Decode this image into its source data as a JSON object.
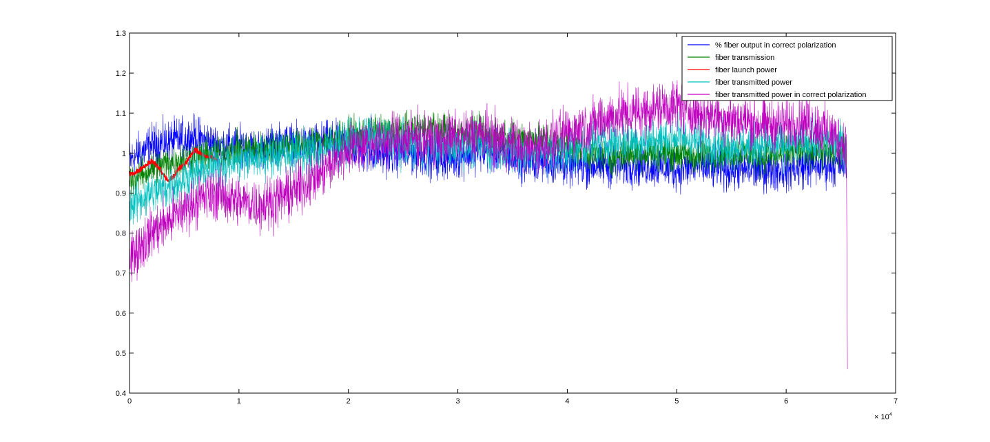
{
  "chart_data": {
    "type": "line",
    "title": "",
    "xlabel": "",
    "ylabel": "",
    "x_multiplier_label": "× 10",
    "x_multiplier_exp": "4",
    "xlim": [
      0,
      70000
    ],
    "ylim": [
      0.4,
      1.3
    ],
    "x_ticks": [
      0,
      10000,
      20000,
      30000,
      40000,
      50000,
      60000,
      70000
    ],
    "x_tick_labels": [
      "0",
      "1",
      "2",
      "3",
      "4",
      "5",
      "6",
      "7"
    ],
    "y_ticks": [
      0.4,
      0.5,
      0.6,
      0.7,
      0.8,
      0.9,
      1.0,
      1.1,
      1.2,
      1.3
    ],
    "y_tick_labels": [
      "0.4",
      "0.5",
      "0.6",
      "0.7",
      "0.8",
      "0.9",
      "1",
      "1.1",
      "1.2",
      "1.3"
    ],
    "grid": false,
    "legend_position": "top-right",
    "series": [
      {
        "name": "% fiber output in correct polarization",
        "color": "#0000ff",
        "x": [
          0,
          2000,
          4000,
          6000,
          8000,
          10000,
          12000,
          14000,
          16000,
          18000,
          20000,
          22000,
          24000,
          26000,
          28000,
          30000,
          32000,
          34000,
          36000,
          38000,
          40000,
          42000,
          44000,
          46000,
          48000,
          50000,
          52000,
          54000,
          56000,
          58000,
          60000,
          62000,
          64000,
          65500
        ],
        "y": [
          0.98,
          1.02,
          1.03,
          1.04,
          1.02,
          1.02,
          1.01,
          1.03,
          1.02,
          1.03,
          1.02,
          1.0,
          1.0,
          1.0,
          0.99,
          0.99,
          1.01,
          1.0,
          0.98,
          0.98,
          0.97,
          0.97,
          0.97,
          0.97,
          0.97,
          0.96,
          0.97,
          0.96,
          0.96,
          0.96,
          0.96,
          0.97,
          0.97,
          0.98
        ],
        "spread": [
          0.05,
          0.05,
          0.05,
          0.05,
          0.045,
          0.045,
          0.045,
          0.045,
          0.045,
          0.045,
          0.05,
          0.05,
          0.05,
          0.05,
          0.05,
          0.05,
          0.05,
          0.05,
          0.05,
          0.05,
          0.05,
          0.05,
          0.05,
          0.05,
          0.05,
          0.05,
          0.05,
          0.05,
          0.05,
          0.05,
          0.05,
          0.05,
          0.05,
          0.05
        ]
      },
      {
        "name": "fiber transmission",
        "color": "#008000",
        "x": [
          0,
          2000,
          4000,
          6000,
          8000,
          10000,
          12000,
          14000,
          16000,
          18000,
          20000,
          22000,
          24000,
          26000,
          28000,
          30000,
          32000,
          34000,
          36000,
          38000,
          40000,
          42000,
          44000,
          46000,
          48000,
          50000,
          52000,
          54000,
          56000,
          58000,
          60000,
          62000,
          64000,
          65500
        ],
        "y": [
          0.93,
          0.96,
          0.98,
          0.99,
          1.0,
          1.01,
          1.01,
          1.02,
          1.02,
          1.03,
          1.04,
          1.05,
          1.05,
          1.06,
          1.06,
          1.05,
          1.05,
          1.04,
          1.04,
          1.03,
          1.02,
          1.0,
          0.99,
          1.0,
          1.0,
          1.0,
          0.99,
          1.0,
          1.0,
          0.99,
          1.0,
          1.01,
          1.0,
          1.0
        ],
        "spread": [
          0.04,
          0.04,
          0.04,
          0.04,
          0.04,
          0.04,
          0.04,
          0.04,
          0.04,
          0.04,
          0.04,
          0.04,
          0.04,
          0.04,
          0.04,
          0.04,
          0.04,
          0.04,
          0.04,
          0.04,
          0.04,
          0.04,
          0.04,
          0.04,
          0.04,
          0.04,
          0.04,
          0.04,
          0.04,
          0.04,
          0.04,
          0.04,
          0.04,
          0.04
        ]
      },
      {
        "name": "fiber launch power",
        "color": "#ff0000",
        "x": [
          0,
          500,
          1000,
          1500,
          2000,
          2500,
          3000,
          3500,
          4000,
          4500,
          5000,
          5500,
          6000,
          6500,
          7000,
          7500,
          8000
        ],
        "y": [
          0.95,
          0.95,
          0.96,
          0.97,
          0.98,
          0.97,
          0.95,
          0.93,
          0.94,
          0.96,
          0.97,
          0.99,
          1.01,
          1.0,
          0.99,
          0.99,
          0.98
        ],
        "spread": [
          0.005,
          0.005,
          0.005,
          0.005,
          0.005,
          0.005,
          0.005,
          0.005,
          0.005,
          0.005,
          0.005,
          0.005,
          0.005,
          0.005,
          0.005,
          0.005,
          0.005
        ]
      },
      {
        "name": "fiber transmitted power",
        "color": "#00bfbf",
        "x": [
          0,
          2000,
          4000,
          6000,
          8000,
          10000,
          12000,
          14000,
          16000,
          18000,
          20000,
          22000,
          24000,
          26000,
          28000,
          30000,
          32000,
          34000,
          36000,
          38000,
          40000,
          42000,
          44000,
          46000,
          48000,
          50000,
          52000,
          54000,
          56000,
          58000,
          60000,
          62000,
          64000,
          65500
        ],
        "y": [
          0.87,
          0.9,
          0.92,
          0.95,
          0.97,
          0.98,
          0.99,
          1.0,
          1.0,
          1.01,
          1.03,
          1.04,
          1.03,
          1.02,
          1.01,
          1.02,
          1.02,
          1.01,
          1.0,
          1.0,
          1.01,
          1.02,
          1.03,
          1.03,
          1.03,
          1.04,
          1.03,
          1.02,
          1.02,
          1.02,
          1.02,
          1.03,
          1.03,
          1.02
        ],
        "spread": [
          0.05,
          0.05,
          0.05,
          0.05,
          0.05,
          0.05,
          0.05,
          0.05,
          0.05,
          0.05,
          0.05,
          0.05,
          0.05,
          0.05,
          0.05,
          0.05,
          0.05,
          0.05,
          0.05,
          0.05,
          0.05,
          0.05,
          0.05,
          0.05,
          0.05,
          0.05,
          0.05,
          0.05,
          0.05,
          0.05,
          0.05,
          0.05,
          0.05,
          0.05
        ]
      },
      {
        "name": "fiber transmitted power in correct polarization",
        "color": "#bf00bf",
        "x": [
          0,
          2000,
          4000,
          6000,
          8000,
          10000,
          12000,
          14000,
          16000,
          18000,
          20000,
          22000,
          24000,
          26000,
          28000,
          30000,
          32000,
          34000,
          36000,
          38000,
          40000,
          42000,
          44000,
          46000,
          48000,
          50000,
          52000,
          54000,
          56000,
          58000,
          60000,
          62000,
          64000,
          65500
        ],
        "y": [
          0.74,
          0.8,
          0.84,
          0.88,
          0.9,
          0.88,
          0.87,
          0.89,
          0.92,
          0.96,
          1.01,
          1.03,
          1.03,
          1.04,
          1.03,
          1.04,
          1.05,
          1.03,
          1.01,
          1.02,
          1.05,
          1.07,
          1.09,
          1.1,
          1.11,
          1.12,
          1.1,
          1.09,
          1.08,
          1.07,
          1.07,
          1.08,
          1.05,
          1.02
        ],
        "spread": [
          0.06,
          0.06,
          0.06,
          0.06,
          0.06,
          0.06,
          0.06,
          0.06,
          0.06,
          0.06,
          0.06,
          0.06,
          0.06,
          0.06,
          0.06,
          0.06,
          0.06,
          0.06,
          0.06,
          0.06,
          0.06,
          0.06,
          0.06,
          0.06,
          0.06,
          0.06,
          0.06,
          0.06,
          0.06,
          0.06,
          0.06,
          0.06,
          0.06,
          0.06
        ],
        "end_drop": [
          65600,
          0.46
        ]
      }
    ]
  }
}
